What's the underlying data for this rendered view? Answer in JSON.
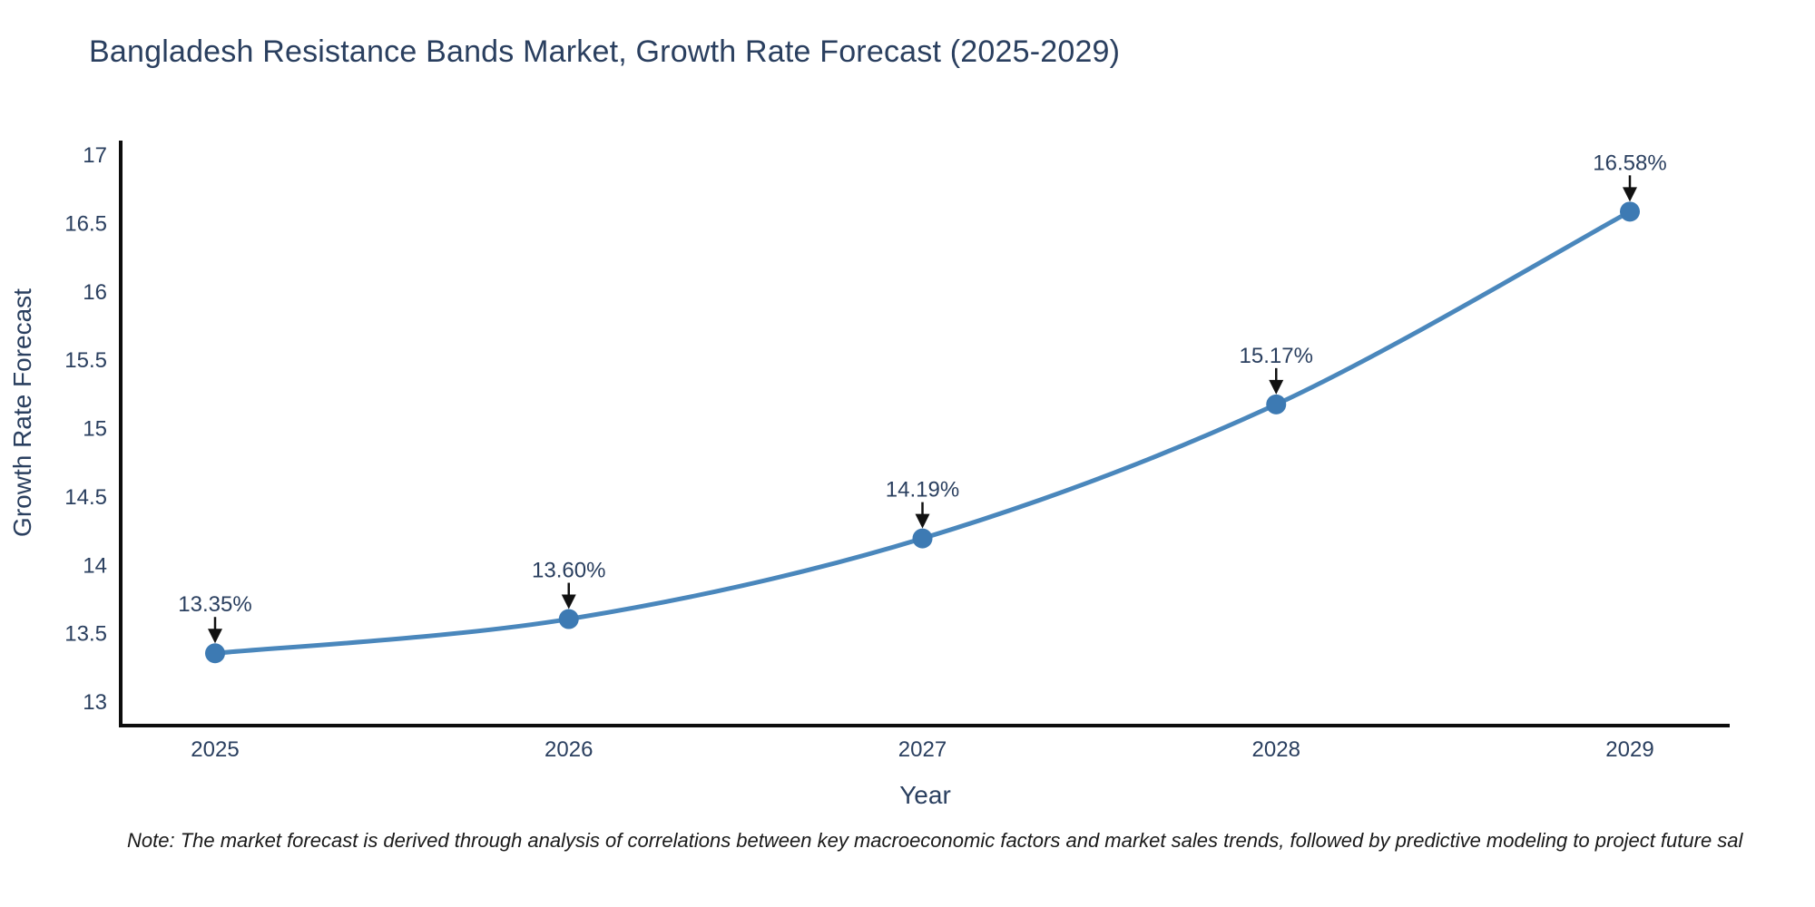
{
  "title": "Bangladesh Resistance Bands Market, Growth Rate Forecast (2025-2029)",
  "note": "Note: The market forecast is derived through analysis of correlations between key macroeconomic factors and market sales trends, followed by predictive modeling to project future sal",
  "chart_data": {
    "type": "line",
    "title": "Bangladesh Resistance Bands Market, Growth Rate Forecast (2025-2029)",
    "xlabel": "Year",
    "ylabel": "Growth Rate Forecast",
    "categories": [
      "2025",
      "2026",
      "2027",
      "2028",
      "2029"
    ],
    "series": [
      {
        "name": "Growth Rate Forecast",
        "values": [
          13.35,
          13.6,
          14.19,
          15.17,
          16.58
        ]
      }
    ],
    "point_labels": [
      "13.35%",
      "13.60%",
      "14.19%",
      "15.17%",
      "16.58%"
    ],
    "yticks": [
      13,
      13.5,
      14,
      14.5,
      15,
      15.5,
      16,
      16.5,
      17
    ],
    "ylim": [
      12.82,
      17.12
    ],
    "grid": false,
    "legend": "none",
    "line_shape": "spline",
    "annotations_have_arrows": true,
    "colors": {
      "line": "#4a87bc",
      "marker": "#3d7ab3",
      "text": "#2a3f5f",
      "axis": "#0d0d0d",
      "arrow": "#111111",
      "background": "#ffffff"
    }
  }
}
